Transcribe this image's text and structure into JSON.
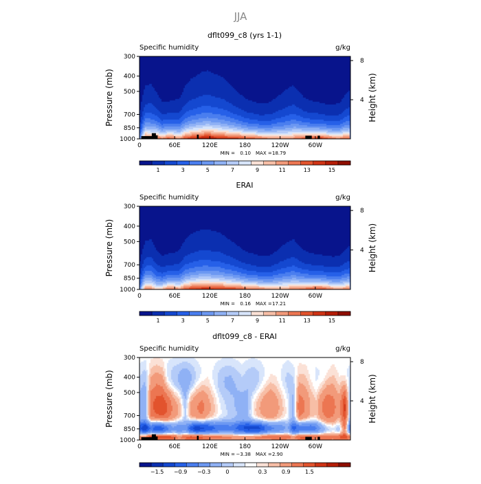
{
  "figure": {
    "title": "JJA"
  },
  "palettes": {
    "full": [
      "#08148c",
      "#0b2fb0",
      "#1448d0",
      "#2660e8",
      "#4a7eef",
      "#6c98f2",
      "#8fb1f5",
      "#b4cbf8",
      "#d8e5fb",
      "#fbe1d6",
      "#f7bea6",
      "#f29a7a",
      "#ec7652",
      "#e2532d",
      "#cf3315",
      "#b51d07",
      "#8e0e00"
    ],
    "diff": [
      "#08148c",
      "#0b2fb0",
      "#1448d0",
      "#2660e8",
      "#4a7eef",
      "#6c98f2",
      "#8fb1f5",
      "#b4cbf8",
      "#d8e5fb",
      "#ffffff",
      "#fbe1d6",
      "#f7bea6",
      "#f29a7a",
      "#ec7652",
      "#e2532d",
      "#cf3315",
      "#b51d07",
      "#8e0e00"
    ]
  },
  "chart_data": [
    {
      "type": "heatmap",
      "title": "dflt099_c8 (yrs 1-1)",
      "left_string": "Specific humidity",
      "right_string": "g/kg",
      "ylabel": "Pressure (mb)",
      "ylabel_right": "Height (km)",
      "x_ticks": [
        "0",
        "60E",
        "120E",
        "180",
        "120W",
        "60W"
      ],
      "x_tick_values": [
        0,
        60,
        120,
        180,
        240,
        300
      ],
      "xlim": [
        0,
        360
      ],
      "y_ticks": [
        "300",
        "400",
        "500",
        "700",
        "850",
        "1000"
      ],
      "y_tick_values": [
        300,
        400,
        500,
        700,
        850,
        1000
      ],
      "ylim": [
        1000,
        300
      ],
      "y_scale": "log",
      "right_ticks": [
        "8",
        "4"
      ],
      "right_tick_values": [
        8,
        4
      ],
      "stats": {
        "min_label": "MIN =",
        "min": "0.10",
        "max_label": "MAX =",
        "max": "18.79"
      },
      "colorbar": {
        "labels": [
          "1",
          "3",
          "5",
          "7",
          "9",
          "11",
          "13",
          "15"
        ],
        "label_boxes": [
          1,
          3,
          5,
          7,
          9,
          11,
          13,
          15
        ],
        "n_colors": 17,
        "palette": "full"
      },
      "field": {
        "kind": "full",
        "surface": [
          4.5,
          14,
          13,
          13.5,
          12.5,
          14,
          13.5,
          12,
          14.5,
          15,
          15.5,
          16,
          16.5,
          16,
          15.5,
          15,
          15,
          15,
          14.5,
          14,
          14,
          13.5,
          13,
          12.5,
          12.5,
          12,
          12,
          12.5,
          13.5,
          14,
          14.5,
          15,
          15,
          14,
          13,
          12.5,
          13.5,
          13
        ],
        "scale_height": [
          200,
          205,
          215,
          190,
          165,
          160,
          165,
          180,
          200,
          215,
          220,
          225,
          225,
          222,
          220,
          215,
          200,
          185,
          175,
          165,
          160,
          155,
          158,
          165,
          180,
          195,
          210,
          215,
          190,
          170,
          160,
          155,
          150,
          150,
          155,
          160,
          180,
          200
        ]
      },
      "masks": [
        {
          "lon": [
            3,
            24
          ],
          "p_top": 960
        },
        {
          "lon": [
            21,
            28
          ],
          "p_top": 920
        },
        {
          "lon": [
            26,
            31
          ],
          "p_top": 950
        },
        {
          "lon": [
            98,
            101
          ],
          "p_top": 940
        },
        {
          "lon": [
            283,
            294
          ],
          "p_top": 955
        },
        {
          "lon": [
            304,
            308
          ],
          "p_top": 955
        }
      ]
    },
    {
      "type": "heatmap",
      "title": "ERAI",
      "left_string": "Specific humidity",
      "right_string": "g/kg",
      "ylabel": "Pressure (mb)",
      "ylabel_right": "Height (km)",
      "x_ticks": [
        "0",
        "60E",
        "120E",
        "180",
        "120W",
        "60W"
      ],
      "x_tick_values": [
        0,
        60,
        120,
        180,
        240,
        300
      ],
      "xlim": [
        0,
        360
      ],
      "y_ticks": [
        "300",
        "400",
        "500",
        "700",
        "850",
        "1000"
      ],
      "y_tick_values": [
        300,
        400,
        500,
        700,
        850,
        1000
      ],
      "ylim": [
        1000,
        300
      ],
      "y_scale": "log",
      "right_ticks": [
        "8",
        "4"
      ],
      "right_tick_values": [
        8,
        4
      ],
      "stats": {
        "min_label": "MIN =",
        "min": "0.16",
        "max_label": "MAX =",
        "max": "17.21"
      },
      "colorbar": {
        "labels": [
          "1",
          "3",
          "5",
          "7",
          "9",
          "11",
          "13",
          "15"
        ],
        "label_boxes": [
          1,
          3,
          5,
          7,
          9,
          11,
          13,
          15
        ],
        "n_colors": 17,
        "palette": "full"
      },
      "field": {
        "kind": "full",
        "surface": [
          5,
          13,
          12.5,
          10.5,
          11,
          13.5,
          13,
          12,
          14,
          14.5,
          15,
          15.5,
          15.5,
          15,
          15,
          14.5,
          14.5,
          14.5,
          14,
          13.5,
          13.5,
          13,
          12.5,
          12,
          12,
          12,
          12,
          12.5,
          13,
          13.5,
          14,
          14.5,
          14.5,
          13.5,
          12.5,
          12,
          12.5,
          12.5
        ],
        "scale_height": [
          190,
          195,
          205,
          185,
          160,
          155,
          160,
          175,
          195,
          205,
          210,
          212,
          212,
          210,
          208,
          200,
          190,
          178,
          168,
          160,
          155,
          150,
          152,
          158,
          172,
          188,
          200,
          205,
          182,
          165,
          155,
          150,
          147,
          147,
          150,
          155,
          172,
          188
        ]
      },
      "masks": []
    },
    {
      "type": "heatmap",
      "title": "dflt099_c8 - ERAI",
      "left_string": "Specific humidity",
      "right_string": "g/kg",
      "ylabel": "Pressure (mb)",
      "ylabel_right": "Height (km)",
      "x_ticks": [
        "0",
        "60E",
        "120E",
        "180",
        "120W",
        "60W"
      ],
      "x_tick_values": [
        0,
        60,
        120,
        180,
        240,
        300
      ],
      "xlim": [
        0,
        360
      ],
      "y_ticks": [
        "300",
        "400",
        "500",
        "700",
        "850",
        "1000"
      ],
      "y_tick_values": [
        300,
        400,
        500,
        700,
        850,
        1000
      ],
      "ylim": [
        1000,
        300
      ],
      "y_scale": "log",
      "right_ticks": [
        "8",
        "4"
      ],
      "right_tick_values": [
        8,
        4
      ],
      "stats": {
        "min_label": "MIN =",
        "min": "−3.38",
        "max_label": "MAX =",
        "max": "2.90"
      },
      "colorbar": {
        "labels": [
          "−1.5",
          "−0.9",
          "−0.3",
          "0",
          "0.3",
          "0.9",
          "1.5"
        ],
        "label_boxes": [
          1,
          3,
          5,
          7,
          10,
          12,
          14
        ],
        "n_colors": 18,
        "palette": "diff"
      },
      "field": {
        "kind": "diff",
        "mid": [
          -0.4,
          -0.5,
          0.8,
          1.0,
          1.1,
          0.9,
          0.5,
          0.3,
          -0.2,
          0.4,
          0.6,
          0.7,
          0.4,
          0.2,
          0.0,
          -0.1,
          -0.2,
          -0.3,
          -0.4,
          -0.3,
          0.1,
          0.3,
          0.5,
          0.6,
          0.4,
          0.2,
          0.0,
          -0.4,
          0.8,
          0.6,
          0.3,
          0.2,
          0.6,
          0.9,
          0.7,
          0.4,
          1.3,
          -0.5
        ],
        "low": [
          -1.2,
          -1.6,
          -1.4,
          -1.8,
          -1.7,
          -1.3,
          -0.8,
          -1.0,
          -0.6,
          -1.5,
          -1.9,
          -1.8,
          -1.6,
          -1.3,
          -1.1,
          -1.0,
          -0.9,
          -1.1,
          -1.3,
          -1.5,
          -1.6,
          -1.7,
          -1.4,
          -1.2,
          -1.0,
          -0.8,
          -0.5,
          -1.2,
          -1.4,
          -1.3,
          -1.2,
          -1.0,
          -0.7,
          -0.5,
          -0.3,
          -0.4,
          0.2,
          -1.0
        ],
        "sfc": [
          0.8,
          1.0,
          1.2,
          1.3,
          1.2,
          1.1,
          1.0,
          0.6,
          1.0,
          1.2,
          1.2,
          1.1,
          1.0,
          0.9,
          0.9,
          0.8,
          0.8,
          0.7,
          0.7,
          0.8,
          0.8,
          0.9,
          0.9,
          0.9,
          1.0,
          1.0,
          0.9,
          0.7,
          1.0,
          1.1,
          1.0,
          0.9,
          0.9,
          0.8,
          0.8,
          0.9,
          1.0,
          0.8
        ],
        "up": [
          -0.1,
          -0.2,
          0.2,
          0.3,
          0.2,
          -0.2,
          -0.3,
          -0.4,
          -0.5,
          -0.4,
          -0.2,
          -0.1,
          0.0,
          -0.1,
          -0.2,
          -0.3,
          -0.3,
          -0.2,
          -0.1,
          -0.2,
          -0.3,
          -0.2,
          -0.1,
          0.0,
          0.0,
          -0.1,
          -0.2,
          -0.1,
          0.1,
          0.1,
          0.0,
          -0.1,
          -0.1,
          0.0,
          0.1,
          0.0,
          -0.1,
          -0.1
        ]
      },
      "masks": [
        {
          "lon": [
            3,
            24
          ],
          "p_top": 960
        },
        {
          "lon": [
            21,
            28
          ],
          "p_top": 920
        },
        {
          "lon": [
            26,
            31
          ],
          "p_top": 950
        },
        {
          "lon": [
            98,
            101
          ],
          "p_top": 940
        },
        {
          "lon": [
            283,
            294
          ],
          "p_top": 955
        },
        {
          "lon": [
            304,
            308
          ],
          "p_top": 955
        }
      ]
    }
  ]
}
